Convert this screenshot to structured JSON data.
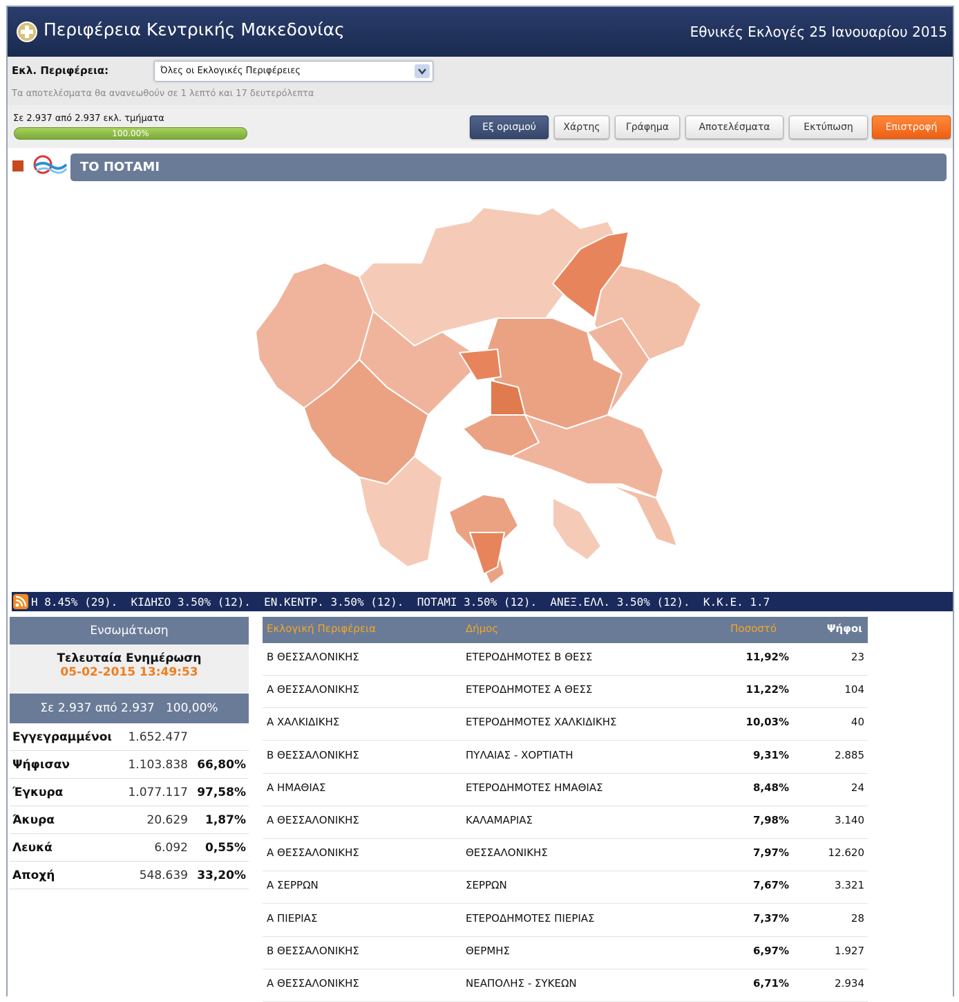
{
  "header": {
    "title": "Περιφέρεια Κεντρικής Μακεδονίας",
    "election": "Εθνικές Εκλογές 25 Ιανουαρίου 2015"
  },
  "filter": {
    "label": "Εκλ. Περιφέρεια:",
    "selected": "Όλες οι Εκλογικές Περιφέρειες",
    "refresh_note": "Τα αποτελέσματα θα ανανεωθούν σε 1 λεπτό και 17 δευτερόλεπτα"
  },
  "progress": {
    "label": "Σε 2.937 από 2.937 εκλ. τμήματα",
    "percent_label": "100.00%"
  },
  "buttons": [
    "Εξ ορισμού",
    "Χάρτης",
    "Γράφημα",
    "Αποτελέσματα",
    "Εκτύπωση",
    "Επιστροφή"
  ],
  "party": {
    "name": "ΤΟ ΠΟΤΑΜΙ"
  },
  "ticker": "Η 8.45% (29).  ΚΙΔΗΣΟ 3.50% (12).  ΕΝ.ΚΕΝΤΡ. 3.50% (12).  ΠΟΤΑΜΙ 3.50% (12).  ΑΝΕΞ.ΕΛΛ. 3.50% (12).  Κ.Κ.Ε. 1.7",
  "summary": {
    "title": "Ενσωμάτωση",
    "last_update_label": "Τελευταία Ενημέρωση",
    "last_update": "05-02-2015 13:49:53",
    "counted": "Σε 2.937 από 2.937",
    "counted_percent": "100,00%",
    "rows": [
      {
        "label": "Εγγεγραμμένοι",
        "count": "1.652.477"
      },
      {
        "label": "Ψήφισαν",
        "count": "1.103.838",
        "percent": "66,80%"
      },
      {
        "label": "Έγκυρα",
        "count": "1.077.117",
        "percent": "97,58%"
      },
      {
        "label": "Άκυρα",
        "count": "20.629",
        "percent": "1,87%"
      },
      {
        "label": "Λευκά",
        "count": "6.092",
        "percent": "0,55%"
      },
      {
        "label": "Αποχή",
        "count": "548.639",
        "percent": "33,20%"
      }
    ]
  },
  "table": {
    "headers": [
      "Εκλογική Περιφέρεια",
      "Δήμος",
      "Ποσοστό",
      "Ψήφοι"
    ],
    "rows": [
      [
        "Β ΘΕΣΣΑΛΟΝΙΚΗΣ",
        "ΕΤΕΡΟΔΗΜΟΤΕΣ Β ΘΕΣΣ",
        "11,92%",
        "23"
      ],
      [
        "Α ΘΕΣΣΑΛΟΝΙΚΗΣ",
        "ΕΤΕΡΟΔΗΜΟΤΕΣ Α ΘΕΣΣ",
        "11,22%",
        "104"
      ],
      [
        "Α ΧΑΛΚΙΔΙΚΗΣ",
        "ΕΤΕΡΟΔΗΜΟΤΕΣ ΧΑΛΚΙΔΙΚΗΣ",
        "10,03%",
        "40"
      ],
      [
        "Β ΘΕΣΣΑΛΟΝΙΚΗΣ",
        "ΠΥΛΑΙΑΣ - ΧΟΡΤΙΑΤΗ",
        "9,31%",
        "2.885"
      ],
      [
        "Α ΗΜΑΘΙΑΣ",
        "ΕΤΕΡΟΔΗΜΟΤΕΣ ΗΜΑΘΙΑΣ",
        "8,48%",
        "24"
      ],
      [
        "Α ΘΕΣΣΑΛΟΝΙΚΗΣ",
        "ΚΑΛΑΜΑΡΙΑΣ",
        "7,98%",
        "3.140"
      ],
      [
        "Α ΘΕΣΣΑΛΟΝΙΚΗΣ",
        "ΘΕΣΣΑΛΟΝΙΚΗΣ",
        "7,97%",
        "12.620"
      ],
      [
        "Α ΣΕΡΡΩΝ",
        "ΣΕΡΡΩΝ",
        "7,67%",
        "3.321"
      ],
      [
        "Α ΠΙΕΡΙΑΣ",
        "ΕΤΕΡΟΔΗΜΟΤΕΣ ΠΙΕΡΙΑΣ",
        "7,37%",
        "28"
      ],
      [
        "Β ΘΕΣΣΑΛΟΝΙΚΗΣ",
        "ΘΕΡΜΗΣ",
        "6,97%",
        "1.927"
      ],
      [
        "Α ΘΕΣΣΑΛΟΝΙΚΗΣ",
        "ΝΕΑΠΟΛΗΣ - ΣΥΚΕΩΝ",
        "6,71%",
        "2.934"
      ]
    ]
  }
}
